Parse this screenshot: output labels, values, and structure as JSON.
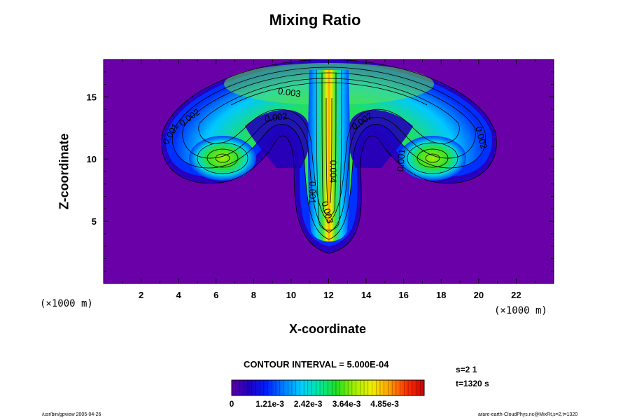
{
  "chart_data": {
    "type": "heatmap",
    "title": "Mixing Ratio",
    "xlabel": "X-coordinate",
    "ylabel": "Z-coordinate",
    "x_unit": "(×1000 m)",
    "xlim": [
      0,
      24
    ],
    "ylim": [
      0,
      18
    ],
    "x_ticks": [
      2,
      4,
      6,
      8,
      10,
      12,
      14,
      16,
      18,
      20,
      22
    ],
    "y_ticks": [
      5,
      10,
      15
    ],
    "contour_interval_text": "CONTOUR INTERVAL = 5.000E-04",
    "contour_labels": [
      {
        "text": "0.003",
        "x": 9.9,
        "z": 15.3,
        "angle": 8
      },
      {
        "text": "0.002",
        "x": 9.2,
        "z": 13.3,
        "angle": -8
      },
      {
        "text": "0.002",
        "x": 13.8,
        "z": 13.0,
        "angle": -35
      },
      {
        "text": "0.002",
        "x": 4.6,
        "z": 13.3,
        "angle": -35
      },
      {
        "text": "0.001",
        "x": 3.6,
        "z": 12.0,
        "angle": -60
      },
      {
        "text": "0.002",
        "x": 20.1,
        "z": 11.7,
        "angle": 75
      },
      {
        "text": "0.001",
        "x": 15.9,
        "z": 9.9,
        "angle": -85
      },
      {
        "text": "0.004",
        "x": 12.2,
        "z": 9.0,
        "angle": 90
      },
      {
        "text": "0.001",
        "x": 11.1,
        "z": 7.3,
        "angle": 90
      },
      {
        "text": "0.003",
        "x": 11.9,
        "z": 5.7,
        "angle": 75
      }
    ],
    "colorbar": {
      "min": 0,
      "max": 0.0061,
      "tick_labels": [
        "0",
        "1.21e-3",
        "2.42e-3",
        "3.64e-3",
        "4.85e-3"
      ],
      "tick_values": [
        0,
        0.00121,
        0.00242,
        0.00364,
        0.00485
      ]
    },
    "colors": {
      "background": "#6a00a8",
      "palette": [
        "#5a00a0",
        "#2000c0",
        "#0020ff",
        "#0080ff",
        "#00d0ff",
        "#00e8a0",
        "#20e020",
        "#a0f000",
        "#f0f000",
        "#ffa000",
        "#ff3000",
        "#d00000"
      ]
    }
  },
  "side": {
    "s_label": "s=2 1",
    "t_label": "t=1320 s"
  },
  "footer": {
    "left": "/usr/bin/gpview 2005-04-26",
    "right": "arare-earth-CloudPhys.nc@MixRt,s=2,t=1320"
  }
}
